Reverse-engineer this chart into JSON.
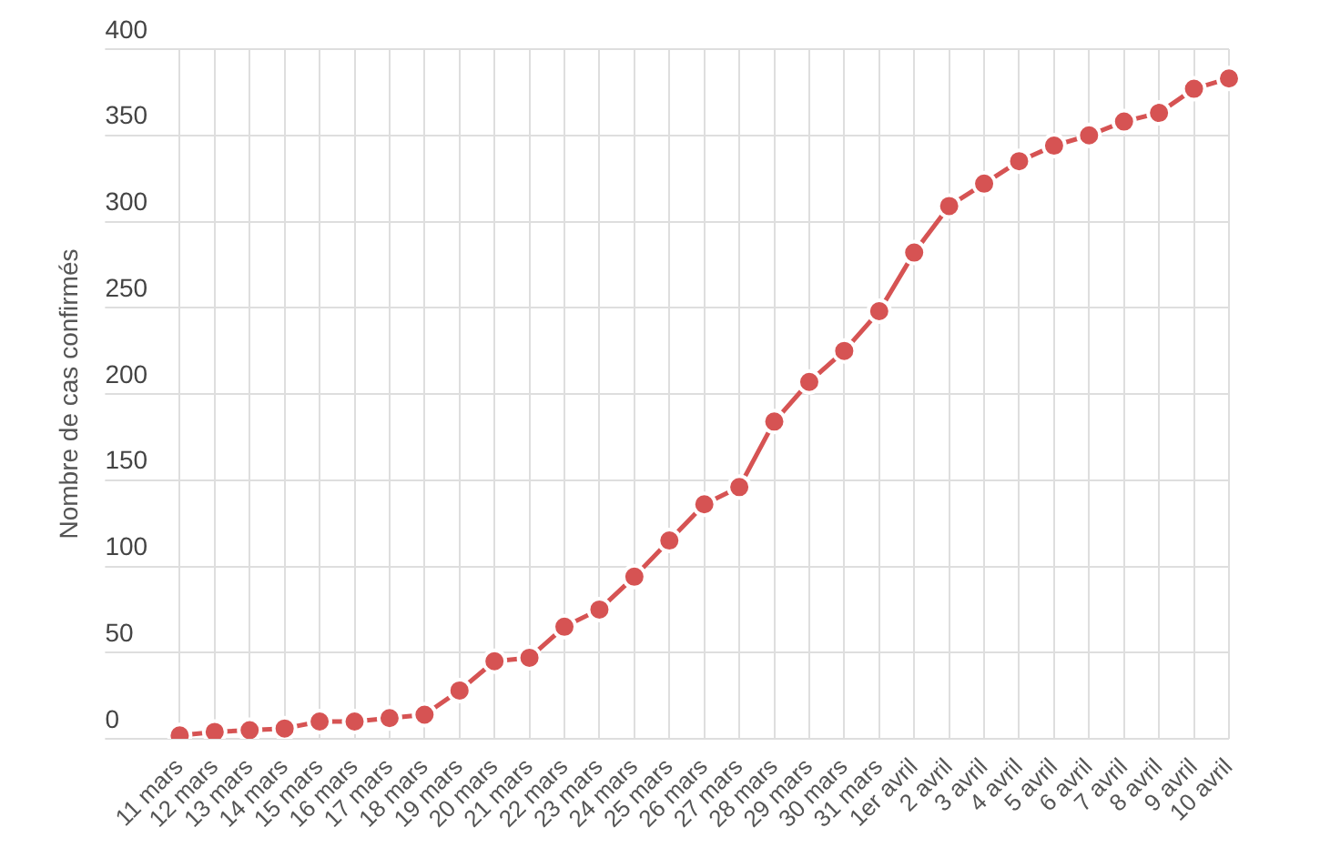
{
  "chart_data": {
    "type": "line",
    "ylabel": "Nombre de cas confirmés",
    "categories": [
      "11 mars",
      "12 mars",
      "13 mars",
      "14 mars",
      "15 mars",
      "16 mars",
      "17 mars",
      "18 mars",
      "19 mars",
      "20 mars",
      "21 mars",
      "22 mars",
      "23 mars",
      "24 mars",
      "25 mars",
      "26 mars",
      "27 mars",
      "28 mars",
      "29 mars",
      "30 mars",
      "31 mars",
      "1er avril",
      "2 avril",
      "3 avril",
      "4 avril",
      "5 avril",
      "6 avril",
      "7 avril",
      "8 avril",
      "9 avril",
      "10 avril"
    ],
    "series": [
      {
        "color": "#d65353",
        "values": [
          2,
          4,
          5,
          6,
          10,
          10,
          12,
          14,
          28,
          45,
          47,
          65,
          75,
          94,
          115,
          136,
          146,
          184,
          207,
          225,
          248,
          282,
          309,
          322,
          335,
          344,
          350,
          358,
          363,
          377,
          383
        ]
      }
    ],
    "ylim": [
      0,
      400
    ],
    "yticks": [
      0,
      50,
      100,
      150,
      200,
      250,
      300,
      350,
      400
    ],
    "grid": true,
    "marker": "circle",
    "line_style": "solid"
  }
}
